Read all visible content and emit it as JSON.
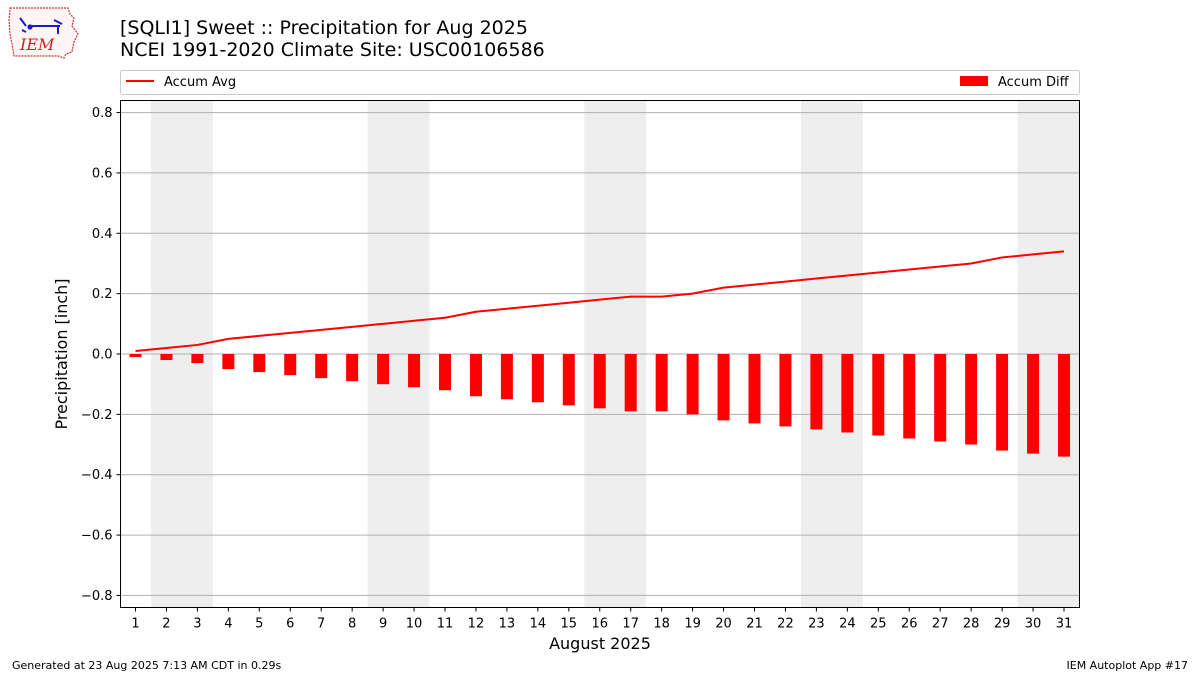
{
  "header": {
    "logo_text": "IEM",
    "title_line1": "[SQLI1] Sweet :: Precipitation for Aug 2025",
    "title_line2": "NCEI 1991-2020 Climate Site: USC00106586"
  },
  "footer": {
    "left": "Generated at 23 Aug 2025 7:13 AM CDT in 0.29s",
    "right": "IEM Autoplot App #17"
  },
  "chart_data": {
    "type": "bar",
    "xlabel": "August 2025",
    "ylabel": "Precipitation [inch]",
    "ylim": [
      -0.84,
      0.84
    ],
    "yticks": [
      -0.8,
      -0.6,
      -0.4,
      -0.2,
      0.0,
      0.2,
      0.4,
      0.6,
      0.8
    ],
    "ytick_labels": [
      "−0.8",
      "−0.6",
      "−0.4",
      "−0.2",
      "0.0",
      "0.2",
      "0.4",
      "0.6",
      "0.8"
    ],
    "grid": true,
    "categories": [
      "1",
      "2",
      "3",
      "4",
      "5",
      "6",
      "7",
      "8",
      "9",
      "10",
      "11",
      "12",
      "13",
      "14",
      "15",
      "16",
      "17",
      "18",
      "19",
      "20",
      "21",
      "22",
      "23",
      "24",
      "25",
      "26",
      "27",
      "28",
      "29",
      "30",
      "31"
    ],
    "weekend_shading": [
      [
        2,
        3
      ],
      [
        9,
        10
      ],
      [
        16,
        17
      ],
      [
        23,
        24
      ],
      [
        30,
        31
      ]
    ],
    "series": [
      {
        "name": "Accum Avg",
        "type": "line",
        "color": "#ff0000",
        "values": [
          0.01,
          0.02,
          0.03,
          0.05,
          0.06,
          0.07,
          0.08,
          0.09,
          0.1,
          0.11,
          0.12,
          0.14,
          0.15,
          0.16,
          0.17,
          0.18,
          0.19,
          0.19,
          0.2,
          0.22,
          0.23,
          0.24,
          0.25,
          0.26,
          0.27,
          0.28,
          0.29,
          0.3,
          0.32,
          0.33,
          0.34
        ]
      },
      {
        "name": "Accum Diff",
        "type": "bar",
        "color": "#ff0000",
        "values": [
          -0.01,
          -0.02,
          -0.03,
          -0.05,
          -0.06,
          -0.07,
          -0.08,
          -0.09,
          -0.1,
          -0.11,
          -0.12,
          -0.14,
          -0.15,
          -0.16,
          -0.17,
          -0.18,
          -0.19,
          -0.19,
          -0.2,
          -0.22,
          -0.23,
          -0.24,
          -0.25,
          -0.26,
          -0.27,
          -0.28,
          -0.29,
          -0.3,
          -0.32,
          -0.33,
          -0.34
        ]
      }
    ],
    "legend_placement": "top"
  }
}
